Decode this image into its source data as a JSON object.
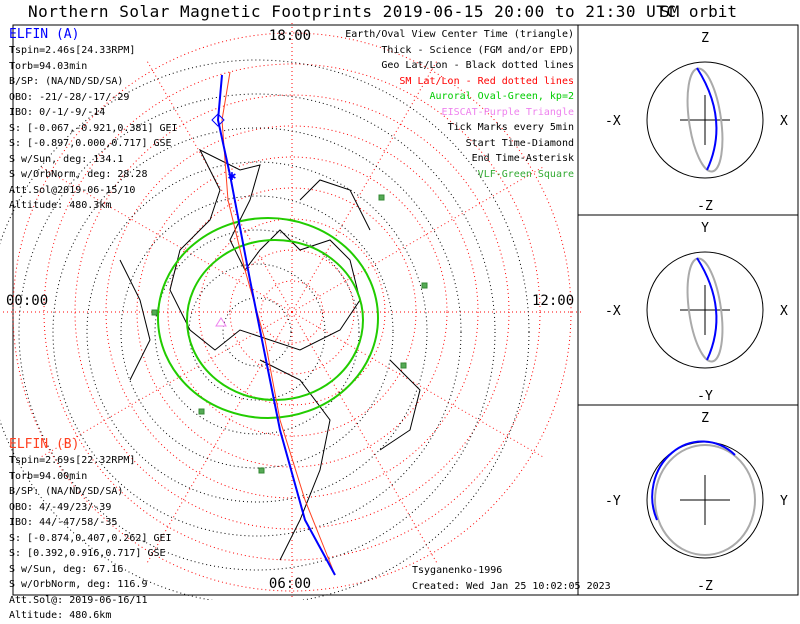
{
  "title": "Northern Solar Magnetic Footprints 2019-06-15 20:00 to 21:30 UTC",
  "sm_title": "SM orbit",
  "mlt_labels": {
    "top": "18:00",
    "left": "00:00",
    "right": "12:00",
    "bottom": "06:00"
  },
  "elfin_a": {
    "name": "ELFIN (A)",
    "color": "#0000ff",
    "lines": [
      "Tspin=2.46s[24.33RPM]",
      "Torb=94.03min",
      "B/SP: (NA/ND/SD/SA)",
      "OBO: -21/-28/-17/-29",
      "IBO: 0/-1/-9/-14",
      "S: [-0.067,-0.921,0.381] GEI",
      "S: [-0.897,0.000,0.717] GSE",
      "S w/Sun, deg: 134.1",
      "S w/OrbNorm, deg: 28.28",
      "Att.Sol@2019-06-15/10",
      "Altitude: 480.3km"
    ]
  },
  "elfin_b": {
    "name": "ELFIN (B)",
    "color": "#ff4020",
    "lines": [
      "Tspin=2.69s[22.32RPM]",
      "Torb=94.00min",
      "B/SP: (NA/ND/SD/SA)",
      "OBO: 4/-49/23/-39",
      "IBO: 44/-47/58/-35",
      "S: [-0.874,0.407,0.262] GEI",
      "S: [0.392,0.916,0.717] GSE",
      "S w/Sun, deg: 67.16",
      "S w/OrbNorm, deg: 116.9",
      "Att.Sol@: 2019-06-16/11",
      "Altitude: 480.6km"
    ]
  },
  "legend": [
    {
      "text": "Earth/Oval View Center Time (triangle)",
      "color": "#000000"
    },
    {
      "text": "Thick - Science (FGM and/or EPD)",
      "color": "#000000"
    },
    {
      "text": "Geo Lat/Lon - Black dotted lines",
      "color": "#000000"
    },
    {
      "text": "SM Lat/Lon - Red dotted lines",
      "color": "#ff0000"
    },
    {
      "text": "Auroral Oval-Green, kp=2",
      "color": "#00cc00"
    },
    {
      "text": "EISCAT-Purple Triangle",
      "color": "#ee82ee"
    },
    {
      "text": "Tick Marks every 5min",
      "color": "#000000"
    },
    {
      "text": "Start Time-Diamond",
      "color": "#000000"
    },
    {
      "text": "End Time-Asterisk",
      "color": "#000000"
    },
    {
      "text": "VLF-Green Square",
      "color": "#33aa33"
    }
  ],
  "credit": "Tsyganenko-1996",
  "created": "Created: Wed Jan 25 10:02:05 2023",
  "panels": [
    {
      "top": "Z",
      "bottom": "-Z",
      "left": "-X",
      "right": "X"
    },
    {
      "top": "Y",
      "bottom": "-Y",
      "left": "-X",
      "right": "X"
    },
    {
      "top": "Z",
      "bottom": "-Z",
      "left": "-Y",
      "right": "Y"
    }
  ]
}
